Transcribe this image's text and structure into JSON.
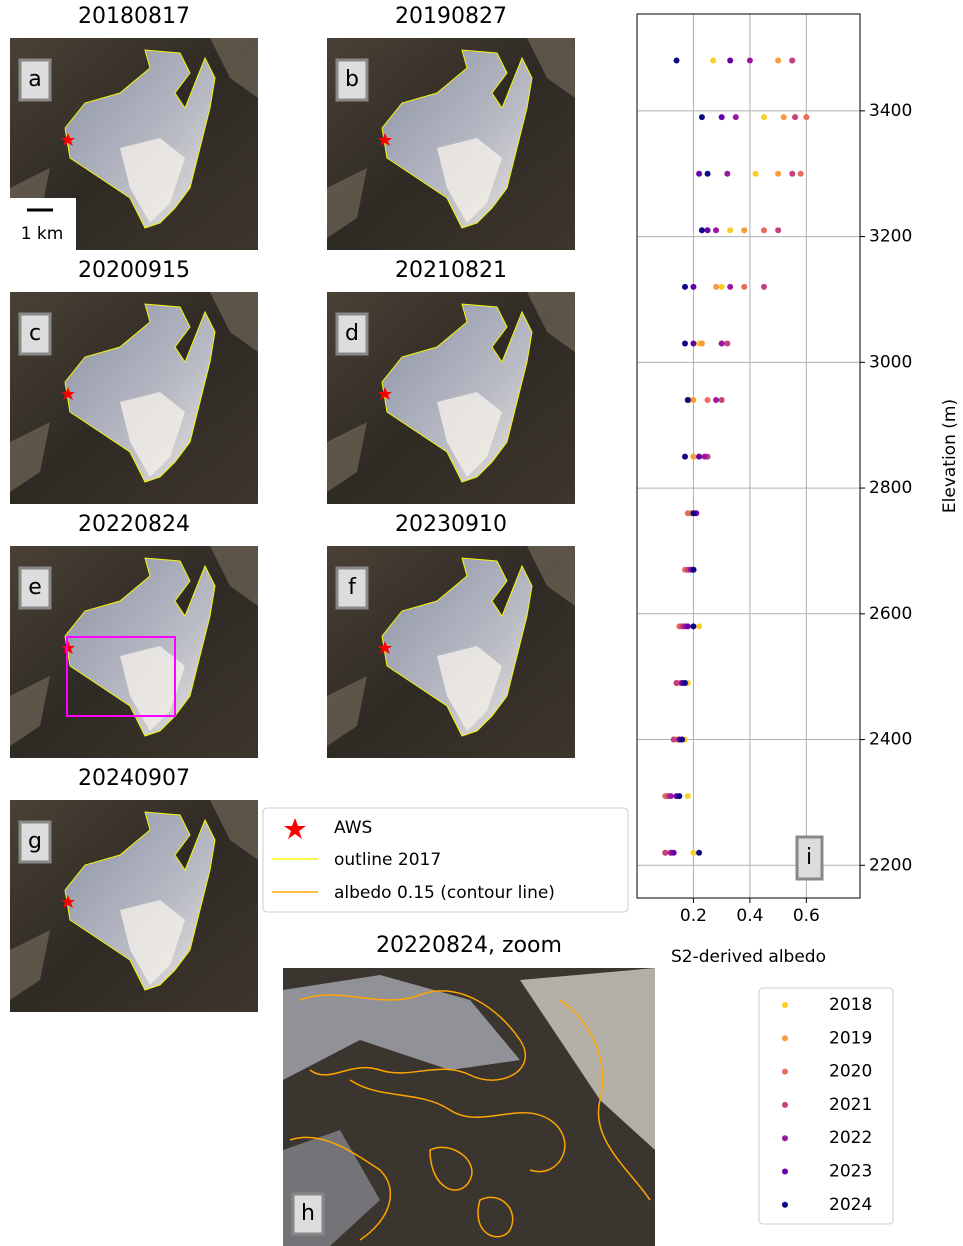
{
  "panels": [
    {
      "title": "20180817",
      "label": "a"
    },
    {
      "title": "20190827",
      "label": "b"
    },
    {
      "title": "20200915",
      "label": "c"
    },
    {
      "title": "20210821",
      "label": "d"
    },
    {
      "title": "20220824",
      "label": "e"
    },
    {
      "title": "20230910",
      "label": "f"
    },
    {
      "title": "20240907",
      "label": "g"
    }
  ],
  "scale_bar": "1 km",
  "map_legend": [
    "AWS",
    "outline 2017",
    "albedo 0.15 (contour line)"
  ],
  "zoom": {
    "title": "20220824, zoom",
    "label": "h"
  },
  "chart_data": {
    "type": "scatter",
    "label": "i",
    "xlabel": "S2-derived albedo",
    "ylabel": "Elevation (m)",
    "xlim": [
      0,
      0.79
    ],
    "xticks": [
      0.2,
      0.4,
      0.6
    ],
    "ylim": [
      2148,
      3554
    ],
    "yticks": [
      2200,
      2400,
      2600,
      2800,
      3000,
      3200,
      3400
    ],
    "grid": true,
    "legend": "lower right",
    "series": [
      {
        "name": "2018",
        "color": "#fcce25",
        "x": [
          0.2,
          0.18,
          0.17,
          0.18,
          0.22,
          0.2,
          0.19,
          0.2,
          0.19,
          0.22,
          0.3,
          0.33,
          0.42,
          0.45,
          0.27
        ],
        "values": [
          2220,
          2310,
          2400,
          2490,
          2580,
          2670,
          2760,
          2850,
          2940,
          3030,
          3120,
          3210,
          3300,
          3390,
          3480
        ]
      },
      {
        "name": "2019",
        "color": "#f99a3e",
        "x": [
          0.1,
          0.11,
          0.14,
          0.15,
          0.16,
          0.18,
          0.19,
          0.2,
          0.2,
          0.23,
          0.28,
          0.38,
          0.5,
          0.52,
          0.5
        ],
        "values": [
          2220,
          2310,
          2400,
          2490,
          2580,
          2670,
          2760,
          2850,
          2940,
          3030,
          3120,
          3210,
          3300,
          3390,
          3480
        ]
      },
      {
        "name": "2020",
        "color": "#e76f5a",
        "x": [
          0.12,
          0.1,
          0.13,
          0.14,
          0.15,
          0.17,
          0.18,
          0.22,
          0.25,
          0.3,
          0.38,
          0.45,
          0.58,
          0.6,
          0.55
        ],
        "values": [
          2220,
          2310,
          2400,
          2490,
          2580,
          2670,
          2760,
          2850,
          2940,
          3030,
          3120,
          3210,
          3300,
          3390,
          3480
        ]
      },
      {
        "name": "2021",
        "color": "#c5407e",
        "x": [
          0.1,
          0.11,
          0.13,
          0.14,
          0.16,
          0.18,
          0.2,
          0.25,
          0.3,
          0.32,
          0.45,
          0.5,
          0.55,
          0.56,
          0.55
        ],
        "values": [
          2220,
          2310,
          2400,
          2490,
          2580,
          2670,
          2760,
          2850,
          2940,
          3030,
          3120,
          3210,
          3300,
          3390,
          3480
        ]
      },
      {
        "name": "2022",
        "color": "#9c179e",
        "x": [
          0.12,
          0.12,
          0.15,
          0.16,
          0.17,
          0.19,
          0.2,
          0.24,
          0.28,
          0.3,
          0.33,
          0.28,
          0.32,
          0.35,
          0.4
        ],
        "values": [
          2220,
          2310,
          2400,
          2490,
          2580,
          2670,
          2760,
          2850,
          2940,
          3030,
          3120,
          3210,
          3300,
          3390,
          3480
        ]
      },
      {
        "name": "2023",
        "color": "#6a00a8",
        "x": [
          0.13,
          0.14,
          0.15,
          0.16,
          0.18,
          0.2,
          0.21,
          0.22,
          0.18,
          0.2,
          0.2,
          0.25,
          0.22,
          0.3,
          0.33
        ],
        "values": [
          2220,
          2310,
          2400,
          2490,
          2580,
          2670,
          2760,
          2850,
          2940,
          3030,
          3120,
          3210,
          3300,
          3390,
          3480
        ]
      },
      {
        "name": "2024",
        "color": "#0d0887",
        "x": [
          0.22,
          0.15,
          0.16,
          0.17,
          0.2,
          0.2,
          0.2,
          0.17,
          0.18,
          0.17,
          0.17,
          0.23,
          0.25,
          0.23,
          0.14
        ],
        "values": [
          2220,
          2310,
          2400,
          2490,
          2580,
          2670,
          2760,
          2850,
          2940,
          3030,
          3120,
          3210,
          3300,
          3390,
          3480
        ]
      }
    ]
  }
}
